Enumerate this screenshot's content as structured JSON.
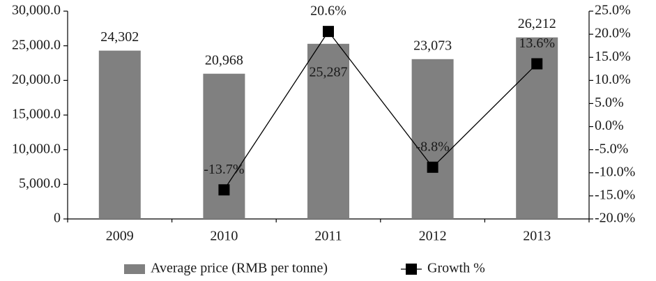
{
  "chart_data": {
    "type": "bar",
    "categories": [
      "2009",
      "2010",
      "2011",
      "2012",
      "2013"
    ],
    "series": [
      {
        "name": "Average price (RMB per tonne)",
        "type": "bar",
        "color": "#808080",
        "values": [
          24302,
          20968,
          25287,
          23073,
          26212
        ],
        "value_labels": [
          "24,302",
          "20,968",
          "25,287",
          "23,073",
          "26,212"
        ]
      },
      {
        "name": "Growth %",
        "type": "line",
        "axis": "y2",
        "color": "#000000",
        "values": [
          null,
          -13.7,
          20.6,
          -8.8,
          13.6
        ],
        "value_labels": [
          null,
          "-13.7%",
          "20.6%",
          "-8.8%",
          "13.6%"
        ]
      }
    ],
    "ylim": [
      0,
      30000
    ],
    "yticks": [
      0,
      {
        "value": 5000,
        "label": "5,000.0"
      },
      {
        "value": 10000,
        "label": "10,000.0"
      },
      {
        "value": 15000,
        "label": "15,000.0"
      },
      {
        "value": 20000,
        "label": "20,000.0"
      },
      {
        "value": 25000,
        "label": "25,000.0"
      },
      {
        "value": 30000,
        "label": "30,000.0"
      }
    ],
    "y2lim": [
      -20,
      25
    ],
    "y2ticks": [
      {
        "value": -20,
        "label": "-20.0%"
      },
      {
        "value": -15,
        "label": "-15.0%"
      },
      {
        "value": -10,
        "label": "-10.0%"
      },
      {
        "value": -5,
        "label": "-5.0%"
      },
      {
        "value": 0,
        "label": "0.0%"
      },
      {
        "value": 5,
        "label": "5.0%"
      },
      {
        "value": 10,
        "label": "10.0%"
      },
      {
        "value": 15,
        "label": "15.0%"
      },
      {
        "value": 20,
        "label": "20.0%"
      },
      {
        "value": 25,
        "label": "25.0%"
      }
    ],
    "legend": "bottom",
    "grid": false
  }
}
